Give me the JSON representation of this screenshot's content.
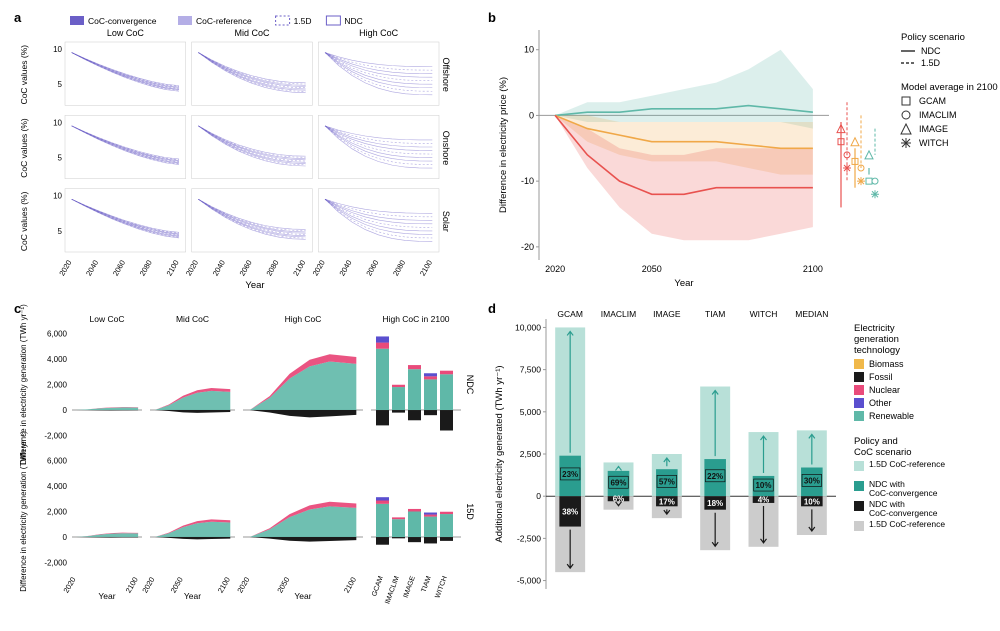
{
  "colors": {
    "purple_main": "#6b5fc7",
    "purple_light": "#b4aee6",
    "red": "#e8524f",
    "orange": "#f0a848",
    "teal": "#5fb8a8",
    "teal_dark": "#2a9d8f",
    "black": "#1a1a1a",
    "gray": "#888888",
    "pink": "#e94b7b",
    "yellow": "#f0b84a",
    "dark_purple": "#5a4fcf",
    "gray_light": "#cccccc",
    "teal_light": "#b8e0d8"
  },
  "panel_a": {
    "label": "a",
    "legend": [
      "CoC-convergence",
      "CoC-reference",
      "1.5D",
      "NDC"
    ],
    "cols": [
      "Low CoC",
      "Mid CoC",
      "High CoC"
    ],
    "rows": [
      "Offshore",
      "Onshore",
      "Solar"
    ],
    "ylabel": "CoC values (%)",
    "xlabel": "Year",
    "xticks": [
      2020,
      2040,
      2060,
      2080,
      2100
    ],
    "yticks": [
      5,
      10
    ],
    "ylim": [
      2,
      11
    ],
    "xlim": [
      2015,
      2105
    ],
    "start_high": 9.5,
    "end_band": {
      "low": [
        4.0,
        4.8
      ],
      "mid": [
        3.8,
        5.2
      ],
      "high": [
        3.5,
        7.5
      ]
    }
  },
  "panel_b": {
    "label": "b",
    "ylabel": "Difference in electricity price (%)",
    "xlabel": "Year",
    "xticks": [
      2020,
      2050,
      2100
    ],
    "yticks": [
      -20,
      -10,
      0,
      10
    ],
    "ylim": [
      -22,
      13
    ],
    "xlim": [
      2015,
      2105
    ],
    "legend_policy": {
      "title": "Policy scenario",
      "items": [
        "NDC",
        "1.5D"
      ]
    },
    "legend_model": {
      "title": "Model average in 2100",
      "items": [
        "GCAM",
        "IMACLIM",
        "IMAGE",
        "WITCH"
      ]
    },
    "series": {
      "red": {
        "line": [
          [
            2020,
            0
          ],
          [
            2030,
            -6
          ],
          [
            2040,
            -10
          ],
          [
            2050,
            -12
          ],
          [
            2060,
            -12
          ],
          [
            2070,
            -11
          ],
          [
            2080,
            -11
          ],
          [
            2090,
            -11
          ],
          [
            2100,
            -11
          ]
        ],
        "band_lo": [
          0,
          -8,
          -14,
          -18,
          -19,
          -19,
          -19,
          -18,
          -17
        ],
        "band_hi": [
          0,
          -2,
          -5,
          -6,
          -6,
          -5,
          -5,
          -5,
          -5
        ]
      },
      "orange": {
        "line": [
          [
            2020,
            0
          ],
          [
            2030,
            -2
          ],
          [
            2040,
            -3
          ],
          [
            2050,
            -4
          ],
          [
            2060,
            -4
          ],
          [
            2070,
            -4
          ],
          [
            2080,
            -4.5
          ],
          [
            2090,
            -5
          ],
          [
            2100,
            -5
          ]
        ],
        "band_lo": [
          0,
          -4,
          -6,
          -7,
          -7,
          -7,
          -8,
          -9,
          -9
        ],
        "band_hi": [
          0,
          0,
          -1,
          -1,
          -1,
          -1,
          -1,
          -1,
          -1
        ]
      },
      "teal": {
        "line": [
          [
            2020,
            0
          ],
          [
            2030,
            0.5
          ],
          [
            2040,
            0.5
          ],
          [
            2050,
            1
          ],
          [
            2060,
            1
          ],
          [
            2070,
            1
          ],
          [
            2080,
            1.5
          ],
          [
            2090,
            1
          ],
          [
            2100,
            0.5
          ]
        ],
        "band_lo": [
          0,
          -1,
          -1,
          -1,
          -1,
          -1,
          -1,
          -1,
          -2
        ],
        "band_hi": [
          0,
          2,
          2,
          3,
          4,
          5,
          7,
          10,
          4
        ]
      }
    }
  },
  "panel_c": {
    "label": "c",
    "ylabel": "Difference in electricity generation (TWh yr⁻¹)",
    "xlabel": "Year",
    "rows": [
      "NDC",
      "15D"
    ],
    "cols": [
      "Low CoC",
      "Mid CoC",
      "High CoC",
      "High CoC in 2100"
    ],
    "yticks": [
      -2000,
      0,
      2000,
      4000,
      6000
    ],
    "ylim": [
      -2500,
      6500
    ],
    "xticks": [
      2020,
      2050,
      2100
    ],
    "bar_models": [
      "GCAM",
      "IMACLIM",
      "IMAGE",
      "TIAM",
      "WITCH"
    ],
    "stacks": {
      "ndc": {
        "low": 200,
        "mid": 1500,
        "high": 3800,
        "bars": [
          [
            4800,
            -1200
          ],
          [
            1800,
            -200
          ],
          [
            3200,
            -800
          ],
          [
            2400,
            -400
          ],
          [
            2800,
            -1600
          ]
        ]
      },
      "15d": {
        "low": 300,
        "mid": 1200,
        "high": 2400,
        "bars": [
          [
            2600,
            -600
          ],
          [
            1400,
            -100
          ],
          [
            2000,
            -400
          ],
          [
            1600,
            -500
          ],
          [
            1800,
            -300
          ]
        ]
      }
    }
  },
  "panel_d": {
    "label": "d",
    "ylabel": "Additional electricity generated (TWh yr⁻¹)",
    "yticks": [
      -5000,
      -2500,
      0,
      2500,
      5000,
      7500,
      10000
    ],
    "ylim": [
      -5500,
      10500
    ],
    "models": [
      "GCAM",
      "IMACLIM",
      "IMAGE",
      "TIAM",
      "WITCH",
      "MEDIAN"
    ],
    "bars": [
      {
        "teal_light_top": 10000,
        "teal": 2400,
        "black": -1800,
        "gray": -4500,
        "teal_pct": "23%",
        "black_pct": "38%"
      },
      {
        "teal_light_top": 2000,
        "teal": 1500,
        "black": -300,
        "gray": -800,
        "teal_pct": "69%",
        "black_pct": "6%"
      },
      {
        "teal_light_top": 2500,
        "teal": 1600,
        "black": -600,
        "gray": -1300,
        "teal_pct": "57%",
        "black_pct": "17%"
      },
      {
        "teal_light_top": 6500,
        "teal": 2200,
        "black": -800,
        "gray": -3200,
        "teal_pct": "22%",
        "black_pct": "18%"
      },
      {
        "teal_light_top": 3800,
        "teal": 1200,
        "black": -400,
        "gray": -3000,
        "teal_pct": "10%",
        "black_pct": "4%"
      },
      {
        "teal_light_top": 3900,
        "teal": 1700,
        "black": -600,
        "gray": -2300,
        "teal_pct": "30%",
        "black_pct": "10%"
      }
    ],
    "legend_tech": {
      "title": "Electricity generation technology",
      "items": [
        "Biomass",
        "Fossil",
        "Nuclear",
        "Other",
        "Renewable"
      ],
      "colors": [
        "#f0b84a",
        "#1a1a1a",
        "#e94b7b",
        "#5a4fcf",
        "#5fb8a8"
      ]
    },
    "legend_policy": {
      "title": "Policy and CoC scenario",
      "items": [
        "1.5D CoC-reference",
        "NDC with CoC-convergence",
        "NDC with CoC-convergence",
        "1.5D CoC-reference"
      ],
      "colors": [
        "#b8e0d8",
        "#2a9d8f",
        "#1a1a1a",
        "#cccccc"
      ]
    }
  }
}
